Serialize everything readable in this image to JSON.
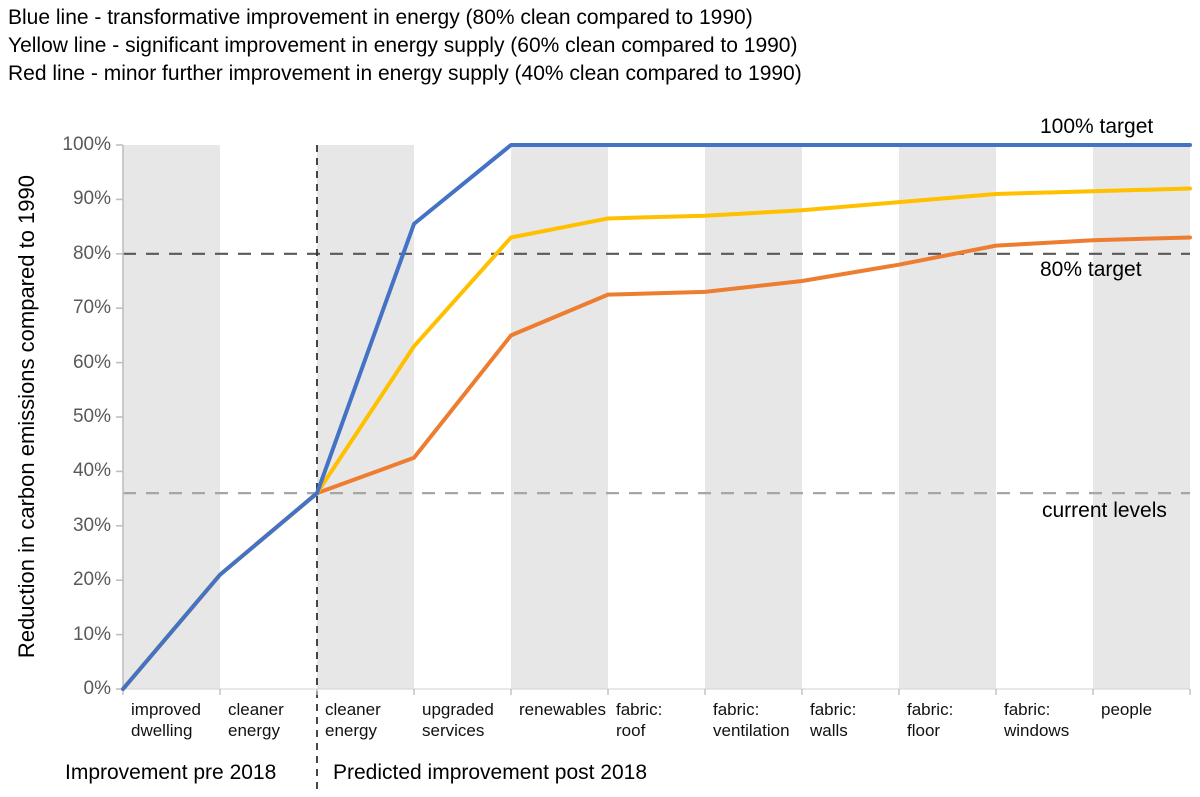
{
  "legend": {
    "lines": [
      "Blue line - transformative improvement in energy (80% clean compared to 1990)",
      "Yellow line - significant improvement in energy supply (60% clean compared to 1990)",
      "Red line - minor further improvement in energy supply (40% clean compared to 1990)"
    ]
  },
  "annotations": {
    "target100": "100% target",
    "target80": "80% target",
    "current": "current levels"
  },
  "footer": {
    "pre": "Improvement pre 2018",
    "post": "Predicted improvement post 2018"
  },
  "colors": {
    "blue": "#4472C4",
    "yellow": "#FFC000",
    "red_orange": "#ED7D31",
    "band_gray": "#E7E7E7",
    "band_white": "#FFFFFF",
    "axis_gray": "#BFBFBF",
    "baseline_gray": "#D9D9D9",
    "target80_dash": "#595959",
    "current_dash": "#A6A6A6",
    "divider": "#333333",
    "ytick_text": "#595959"
  },
  "chart_data": {
    "type": "line",
    "title": "",
    "xlabel": "",
    "ylabel": "Reduction in carbon emissions compared to 1990",
    "ylim": [
      0,
      100
    ],
    "grid": false,
    "legend_position": "top-left as text lines",
    "y_ticks": [
      "0%",
      "10%",
      "20%",
      "30%",
      "40%",
      "50%",
      "60%",
      "70%",
      "80%",
      "90%",
      "100%"
    ],
    "categories": [
      "improved\ndwelling",
      "cleaner\nenergy",
      "cleaner\nenergy",
      "upgraded\nservices",
      "renewables",
      "fabric:\nroof",
      "fabric:\nventilation",
      "fabric:\nwalls",
      "fabric:\nfloor",
      "fabric:\nwindows",
      "people"
    ],
    "band_shading": "alternating vertical bands per category, gray first",
    "x_note": "series values sit at band boundaries: first value is the start point, then cumulative level after each of the 11 measures",
    "series": [
      {
        "name": "Blue - transformative improvement (80% clean)",
        "color": "#4472C4",
        "values": [
          0,
          21,
          36,
          85.5,
          100,
          100,
          100,
          100,
          100,
          100,
          100,
          100
        ]
      },
      {
        "name": "Yellow - significant improvement (60% clean)",
        "color": "#FFC000",
        "values": [
          0,
          21,
          36,
          63,
          83,
          86.5,
          87,
          88,
          89.5,
          91,
          91.5,
          92
        ]
      },
      {
        "name": "Red - minor further improvement (40% clean)",
        "color": "#ED7D31",
        "values": [
          0,
          21,
          36,
          42.5,
          65,
          72.5,
          73,
          75,
          78,
          81.5,
          82.5,
          83
        ]
      }
    ],
    "reference_lines": [
      {
        "label": "80% target",
        "value": 80,
        "style": "dashed",
        "color": "#595959"
      },
      {
        "label": "current levels",
        "value": 36,
        "style": "dashed",
        "color": "#A6A6A6"
      }
    ],
    "divider": {
      "after_category_index": 2,
      "style": "dashed-vertical",
      "color": "#333333",
      "label_left": "Improvement pre 2018",
      "label_right": "Predicted improvement post 2018"
    }
  }
}
